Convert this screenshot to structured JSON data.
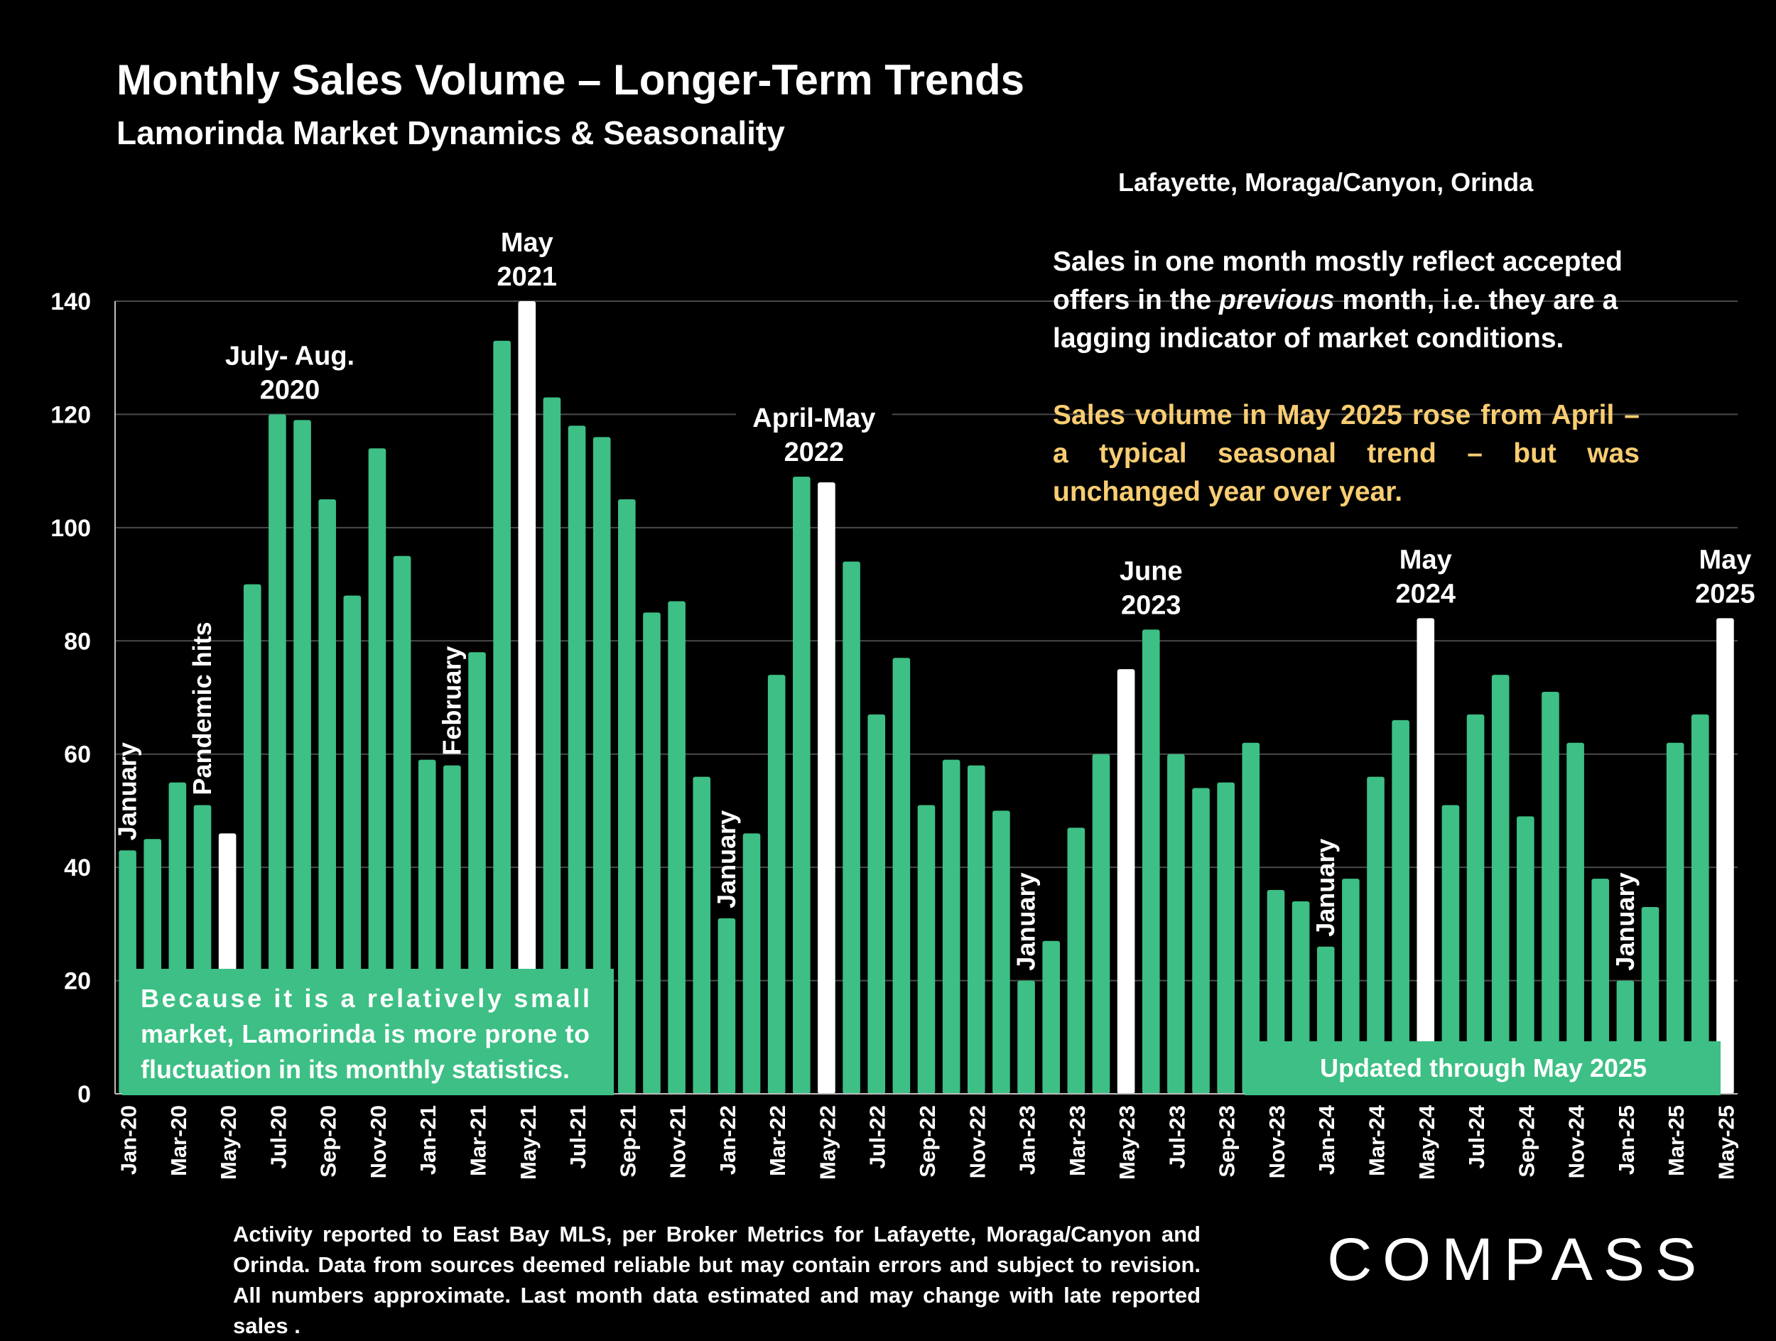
{
  "header": {
    "title": "Monthly Sales Volume – Longer-Term Trends",
    "subtitle": "Lamorinda Market Dynamics & Seasonality",
    "region": "Lafayette, Moraga/Canyon, Orinda"
  },
  "notes": {
    "lagging_parts": [
      "Sales in one month mostly reflect accepted offers in the ",
      "previous",
      " month, i.e. they are a lagging indicator of market conditions."
    ],
    "seasonal_lines": [
      "Sales volume in May 2025 rose from April –",
      "a typical seasonal trend – but was",
      "unchanged year over year."
    ],
    "small_market_lines": [
      "Because it is a relatively small",
      "market, Lamorinda is more prone to",
      "fluctuation in its monthly statistics."
    ],
    "updated": "Updated through May 2025"
  },
  "footer": {
    "text": "Activity reported to East Bay MLS, per Broker Metrics for Lafayette, Moraga/Canyon and Orinda. Data from sources deemed reliable but may contain errors and subject to revision. All numbers approximate. Last month data estimated and may change with late reported sales ."
  },
  "logo": {
    "text": "COMPASS"
  },
  "colors": {
    "bar": "#3dbf85",
    "highlight": "#ffffff",
    "background": "#000000",
    "note_yellow": "#f8cd72",
    "text": "#ffffff"
  },
  "chart_data": {
    "type": "bar",
    "months": [
      "Jan-20",
      "Feb-20",
      "Mar-20",
      "Apr-20",
      "May-20",
      "Jun-20",
      "Jul-20",
      "Aug-20",
      "Sep-20",
      "Oct-20",
      "Nov-20",
      "Dec-20",
      "Jan-21",
      "Feb-21",
      "Mar-21",
      "Apr-21",
      "May-21",
      "Jun-21",
      "Jul-21",
      "Aug-21",
      "Sep-21",
      "Oct-21",
      "Nov-21",
      "Dec-21",
      "Jan-22",
      "Feb-22",
      "Mar-22",
      "Apr-22",
      "May-22",
      "Jun-22",
      "Jul-22",
      "Aug-22",
      "Sep-22",
      "Oct-22",
      "Nov-22",
      "Dec-22",
      "Jan-23",
      "Feb-23",
      "Mar-23",
      "Apr-23",
      "May-23",
      "Jun-23",
      "Jul-23",
      "Aug-23",
      "Sep-23",
      "Oct-23",
      "Nov-23",
      "Dec-23",
      "Jan-24",
      "Feb-24",
      "Mar-24",
      "Apr-24",
      "May-24",
      "Jun-24",
      "Jul-24",
      "Aug-24",
      "Sep-24",
      "Oct-24",
      "Nov-24",
      "Dec-24",
      "Jan-25",
      "Feb-25",
      "Mar-25",
      "Apr-25",
      "May-25"
    ],
    "values": [
      43,
      45,
      55,
      51,
      46,
      90,
      120,
      119,
      105,
      88,
      114,
      95,
      59,
      58,
      78,
      133,
      140,
      123,
      118,
      116,
      105,
      85,
      87,
      56,
      31,
      46,
      74,
      109,
      108,
      94,
      67,
      77,
      51,
      59,
      58,
      50,
      20,
      27,
      47,
      60,
      75,
      82,
      60,
      54,
      55,
      62,
      36,
      34,
      26,
      38,
      56,
      66,
      84,
      51,
      67,
      74,
      49,
      71,
      62,
      38,
      20,
      33,
      62,
      67,
      84
    ],
    "highlight_indices": [
      4,
      16,
      28,
      40,
      52,
      64
    ],
    "tick_labels": [
      "Jan-20",
      "Mar-20",
      "May-20",
      "Jul-20",
      "Sep-20",
      "Nov-20",
      "Jan-21",
      "Mar-21",
      "May-21",
      "Jul-21",
      "Sep-21",
      "Nov-21",
      "Jan-22",
      "Mar-22",
      "May-22",
      "Jul-22",
      "Sep-22",
      "Nov-22",
      "Jan-23",
      "Mar-23",
      "May-23",
      "Jul-23",
      "Sep-23",
      "Nov-23",
      "Jan-24",
      "Mar-24",
      "May-24",
      "Jul-24",
      "Sep-24",
      "Nov-24",
      "Jan-25",
      "Mar-25",
      "May-25"
    ],
    "ylim": [
      0,
      140
    ],
    "yticks": [
      0,
      20,
      40,
      60,
      80,
      100,
      120,
      140
    ],
    "grid": true,
    "annotations": [
      {
        "index": 0,
        "text": "January",
        "rotate": true
      },
      {
        "index": 3,
        "text": "Pandemic hits",
        "rotate": true
      },
      {
        "index": 13,
        "text": "February",
        "rotate": true
      },
      {
        "index": 24,
        "text": "January",
        "rotate": true
      },
      {
        "index": 36,
        "text": "January",
        "rotate": true
      },
      {
        "index": 48,
        "text": "January",
        "rotate": true
      },
      {
        "index": 60,
        "text": "January",
        "rotate": true
      },
      {
        "index": 6.5,
        "lines": [
          "July- Aug.",
          "2020"
        ]
      },
      {
        "index": 16,
        "lines": [
          "May",
          "2021"
        ]
      },
      {
        "index": 27.5,
        "lines": [
          "April-May",
          "2022"
        ]
      },
      {
        "index": 41,
        "lines": [
          "June",
          "2023"
        ]
      },
      {
        "index": 52,
        "lines": [
          "May",
          "2024"
        ]
      },
      {
        "index": 64,
        "lines": [
          "May",
          "2025"
        ]
      }
    ]
  }
}
